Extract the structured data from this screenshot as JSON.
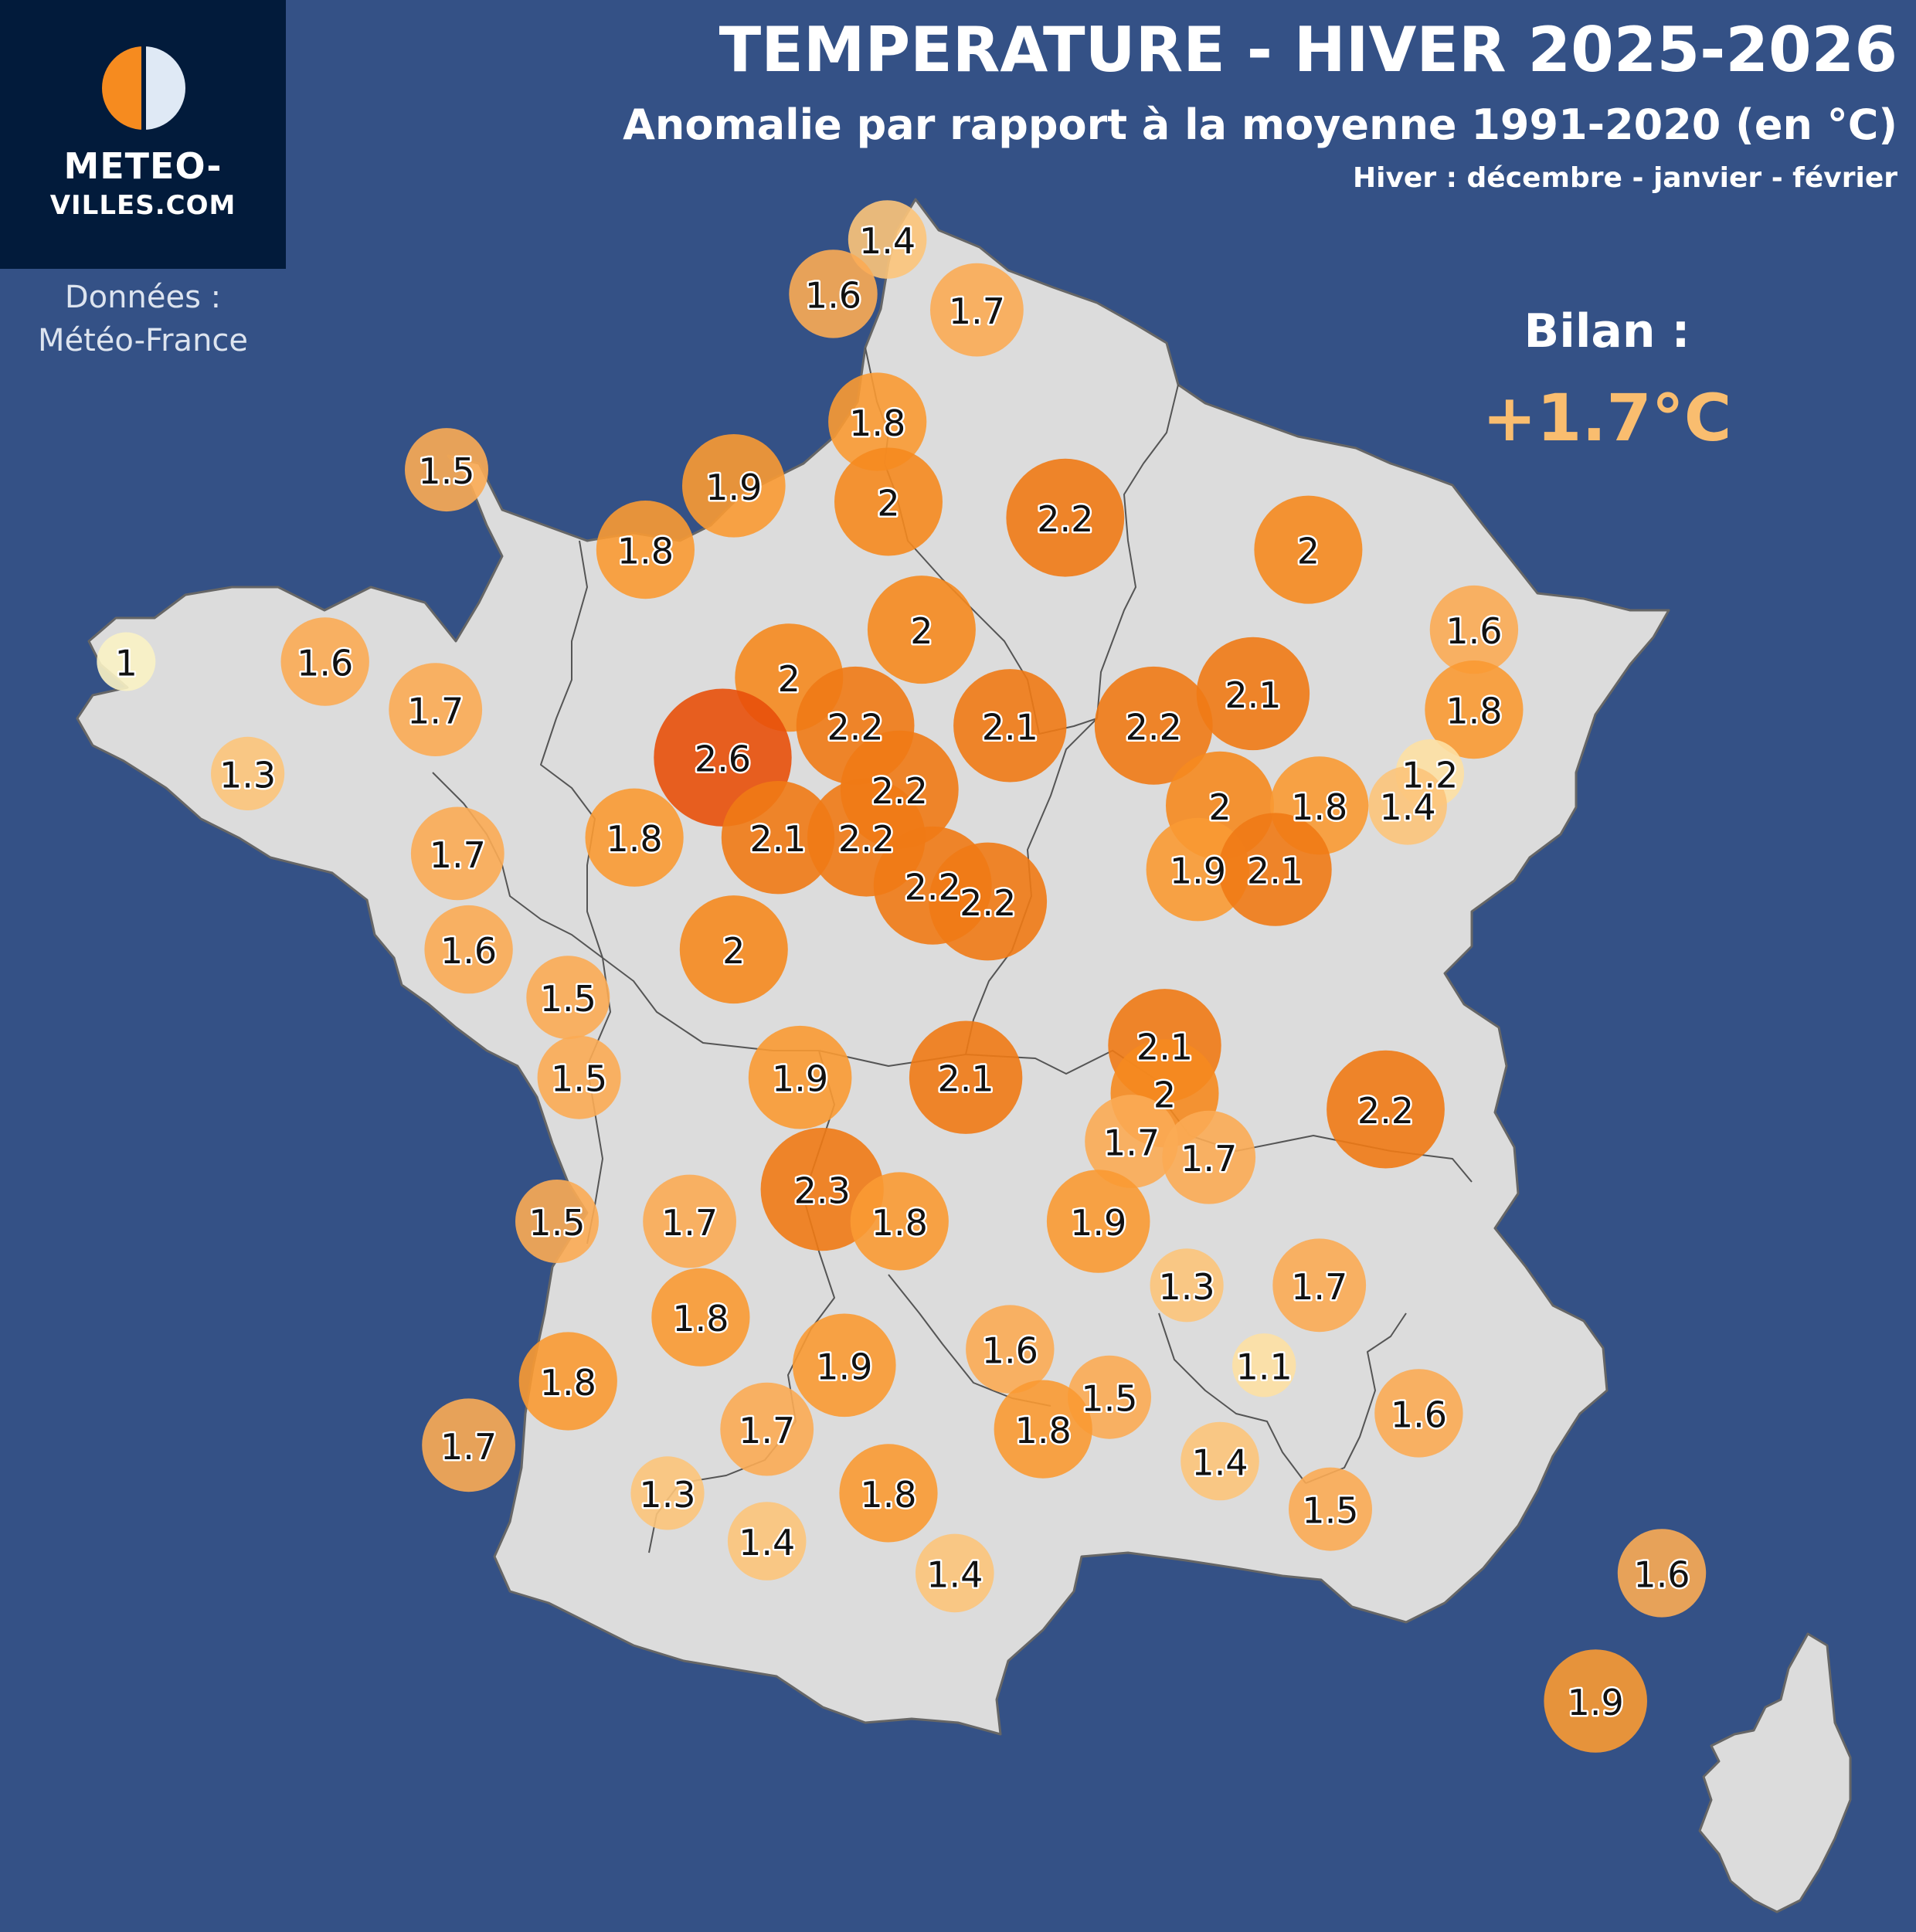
{
  "header": {
    "title": "TEMPERATURE - HIVER 2025-2026",
    "subtitle": "Anomalie par rapport à la moyenne 1991-2020 (en °C)",
    "note": "Hiver : décembre - janvier - février"
  },
  "logo": {
    "line1": "METEO-",
    "line2": "VILLES.COM",
    "icon": "half-sun-icon"
  },
  "source": {
    "label": "Données :",
    "name": "Météo-France"
  },
  "summary": {
    "label": "Bilan :",
    "value": "+1.7°C"
  },
  "colors": {
    "background": "#345186",
    "land": "#dcdcdc",
    "border": "#333333",
    "logo_bg": "#021b3b",
    "scale": [
      "#faf2c4",
      "#fde0a3",
      "#fcc47a",
      "#fbab54",
      "#fa9a33",
      "#f58a1f",
      "#ef7a15",
      "#ea6210",
      "#e8500a"
    ]
  },
  "chart_data": {
    "type": "bubble-map",
    "unit": "°C",
    "points": [
      {
        "lon": 2.39,
        "lat": 51.04,
        "value": 1.4
      },
      {
        "lon": 3.2,
        "lat": 50.6,
        "value": 1.7
      },
      {
        "lon": 1.9,
        "lat": 50.7,
        "value": 1.6
      },
      {
        "lon": 2.3,
        "lat": 49.9,
        "value": 1.8
      },
      {
        "lon": 4.0,
        "lat": 49.3,
        "value": 2.2
      },
      {
        "lon": 6.2,
        "lat": 49.1,
        "value": 2.0
      },
      {
        "lon": -1.6,
        "lat": 49.6,
        "value": 1.5
      },
      {
        "lon": 1.0,
        "lat": 49.5,
        "value": 1.9
      },
      {
        "lon": 2.4,
        "lat": 49.4,
        "value": 2.0
      },
      {
        "lon": 0.2,
        "lat": 49.1,
        "value": 1.8
      },
      {
        "lon": 7.7,
        "lat": 48.6,
        "value": 1.6
      },
      {
        "lon": 2.7,
        "lat": 48.6,
        "value": 2.0
      },
      {
        "lon": 7.7,
        "lat": 48.1,
        "value": 1.8
      },
      {
        "lon": 5.7,
        "lat": 48.2,
        "value": 2.1
      },
      {
        "lon": -4.5,
        "lat": 48.4,
        "value": 1.0
      },
      {
        "lon": -2.7,
        "lat": 48.4,
        "value": 1.6
      },
      {
        "lon": 1.5,
        "lat": 48.3,
        "value": 2.0
      },
      {
        "lon": 2.1,
        "lat": 48.0,
        "value": 2.2
      },
      {
        "lon": 3.5,
        "lat": 48.0,
        "value": 2.1
      },
      {
        "lon": 7.3,
        "lat": 47.7,
        "value": 1.2
      },
      {
        "lon": -1.7,
        "lat": 48.1,
        "value": 1.7
      },
      {
        "lon": 4.8,
        "lat": 48.0,
        "value": 2.2
      },
      {
        "lon": 0.9,
        "lat": 47.8,
        "value": 2.6
      },
      {
        "lon": 2.5,
        "lat": 47.6,
        "value": 2.2
      },
      {
        "lon": 7.1,
        "lat": 47.5,
        "value": 1.4
      },
      {
        "lon": 5.4,
        "lat": 47.5,
        "value": 2.0
      },
      {
        "lon": 6.3,
        "lat": 47.5,
        "value": 1.8
      },
      {
        "lon": -3.4,
        "lat": 47.7,
        "value": 1.3
      },
      {
        "lon": 0.1,
        "lat": 47.3,
        "value": 1.8
      },
      {
        "lon": 1.4,
        "lat": 47.3,
        "value": 2.1
      },
      {
        "lon": 2.2,
        "lat": 47.3,
        "value": 2.2
      },
      {
        "lon": 5.2,
        "lat": 47.1,
        "value": 1.9
      },
      {
        "lon": 5.9,
        "lat": 47.1,
        "value": 2.1
      },
      {
        "lon": -1.5,
        "lat": 47.2,
        "value": 1.7
      },
      {
        "lon": 2.8,
        "lat": 47.0,
        "value": 2.2
      },
      {
        "lon": 3.3,
        "lat": 46.9,
        "value": 2.2
      },
      {
        "lon": -1.4,
        "lat": 46.6,
        "value": 1.6
      },
      {
        "lon": 1.0,
        "lat": 46.6,
        "value": 2.0
      },
      {
        "lon": -0.5,
        "lat": 46.3,
        "value": 1.5
      },
      {
        "lon": 4.9,
        "lat": 46.0,
        "value": 2.1
      },
      {
        "lon": 1.6,
        "lat": 45.8,
        "value": 1.9
      },
      {
        "lon": -0.4,
        "lat": 45.8,
        "value": 1.5
      },
      {
        "lon": 3.1,
        "lat": 45.8,
        "value": 2.1
      },
      {
        "lon": 4.9,
        "lat": 45.7,
        "value": 2.0
      },
      {
        "lon": 6.9,
        "lat": 45.6,
        "value": 2.2
      },
      {
        "lon": 4.6,
        "lat": 45.4,
        "value": 1.7
      },
      {
        "lon": 5.3,
        "lat": 45.3,
        "value": 1.7
      },
      {
        "lon": 1.8,
        "lat": 45.1,
        "value": 2.3
      },
      {
        "lon": -0.6,
        "lat": 44.9,
        "value": 1.5
      },
      {
        "lon": 0.6,
        "lat": 44.9,
        "value": 1.7
      },
      {
        "lon": 2.5,
        "lat": 44.9,
        "value": 1.8
      },
      {
        "lon": 4.3,
        "lat": 44.9,
        "value": 1.9
      },
      {
        "lon": 5.1,
        "lat": 44.5,
        "value": 1.3
      },
      {
        "lon": 6.3,
        "lat": 44.5,
        "value": 1.7
      },
      {
        "lon": 0.7,
        "lat": 44.3,
        "value": 1.8
      },
      {
        "lon": 3.5,
        "lat": 44.1,
        "value": 1.6
      },
      {
        "lon": 5.8,
        "lat": 44.0,
        "value": 1.1
      },
      {
        "lon": -0.5,
        "lat": 43.9,
        "value": 1.8
      },
      {
        "lon": 2.0,
        "lat": 44.0,
        "value": 1.9
      },
      {
        "lon": 4.4,
        "lat": 43.8,
        "value": 1.5
      },
      {
        "lon": 7.2,
        "lat": 43.7,
        "value": 1.6
      },
      {
        "lon": 1.3,
        "lat": 43.6,
        "value": 1.7
      },
      {
        "lon": 3.8,
        "lat": 43.6,
        "value": 1.8
      },
      {
        "lon": -1.4,
        "lat": 43.5,
        "value": 1.7
      },
      {
        "lon": 5.4,
        "lat": 43.4,
        "value": 1.4
      },
      {
        "lon": 0.4,
        "lat": 43.2,
        "value": 1.3
      },
      {
        "lon": 2.4,
        "lat": 43.2,
        "value": 1.8
      },
      {
        "lon": 6.4,
        "lat": 43.1,
        "value": 1.5
      },
      {
        "lon": 1.3,
        "lat": 42.9,
        "value": 1.4
      },
      {
        "lon": 3.0,
        "lat": 42.7,
        "value": 1.4
      },
      {
        "lon": 9.4,
        "lat": 42.7,
        "value": 1.6
      },
      {
        "lon": 8.8,
        "lat": 41.9,
        "value": 1.9
      }
    ]
  }
}
